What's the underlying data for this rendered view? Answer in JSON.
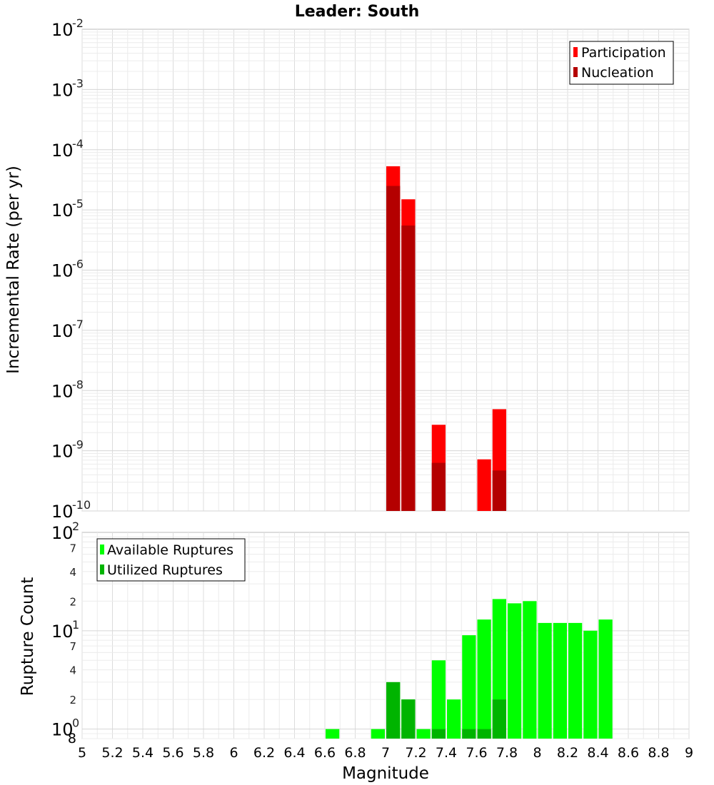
{
  "chart_data": [
    {
      "type": "bar",
      "title": "Leader: South",
      "ylabel": "Incremental Rate (per yr)",
      "yscale": "log",
      "ylim": [
        1e-10,
        0.01
      ],
      "xlim": [
        5,
        9
      ],
      "bin_width": 0.1,
      "ytick_labels": [
        {
          "base": "10",
          "exp": "-10"
        },
        {
          "base": "10",
          "exp": "-9"
        },
        {
          "base": "10",
          "exp": "-8"
        },
        {
          "base": "10",
          "exp": "-7"
        },
        {
          "base": "10",
          "exp": "-6"
        },
        {
          "base": "10",
          "exp": "-5"
        },
        {
          "base": "10",
          "exp": "-4"
        },
        {
          "base": "10",
          "exp": "-3"
        },
        {
          "base": "10",
          "exp": "-2"
        }
      ],
      "legend_position": "top-right",
      "series": [
        {
          "name": "Participation",
          "color": "#ff0000",
          "x": [
            7.05,
            7.15,
            7.35,
            7.65,
            7.75
          ],
          "values": [
            5.3e-05,
            1.5e-05,
            2.7e-09,
            7.2e-10,
            4.9e-09
          ]
        },
        {
          "name": "Nucleation",
          "color": "#b40000",
          "x": [
            7.05,
            7.15,
            7.35,
            7.75
          ],
          "values": [
            2.5e-05,
            5.5e-06,
            6.3e-10,
            4.7e-10
          ]
        }
      ]
    },
    {
      "type": "bar",
      "xlabel": "Magnitude",
      "ylabel": "Rupture Count",
      "yscale": "log",
      "ylim": [
        0.8,
        100
      ],
      "xlim": [
        5,
        9
      ],
      "bin_width": 0.1,
      "xticks": [
        "5",
        "5.2",
        "5.4",
        "5.6",
        "5.8",
        "6",
        "6.2",
        "6.4",
        "6.6",
        "6.8",
        "7",
        "7.2",
        "7.4",
        "7.6",
        "7.8",
        "8",
        "8.2",
        "8.4",
        "8.6",
        "8.8",
        "9"
      ],
      "ytick_labels": [
        {
          "base": "10",
          "exp": "0"
        },
        {
          "base": "10",
          "exp": "1"
        },
        {
          "base": "10",
          "exp": "2"
        }
      ],
      "minor_tick_labels": [
        "8",
        "2",
        "4",
        "7",
        "2",
        "4",
        "7"
      ],
      "legend_position": "top-left",
      "series": [
        {
          "name": "Available Ruptures",
          "color": "#00ff00",
          "x": [
            6.65,
            6.95,
            7.05,
            7.15,
            7.25,
            7.35,
            7.45,
            7.55,
            7.65,
            7.75,
            7.85,
            7.95,
            8.05,
            8.15,
            8.25,
            8.35,
            8.45
          ],
          "values": [
            1,
            1,
            3,
            2,
            1,
            5,
            2,
            9,
            13,
            21,
            19,
            20,
            12,
            12,
            12,
            10,
            13
          ]
        },
        {
          "name": "Utilized Ruptures",
          "color": "#00b400",
          "x": [
            7.05,
            7.15,
            7.35,
            7.55,
            7.65,
            7.75
          ],
          "values": [
            3,
            2,
            1,
            1,
            1,
            2
          ]
        }
      ]
    }
  ]
}
